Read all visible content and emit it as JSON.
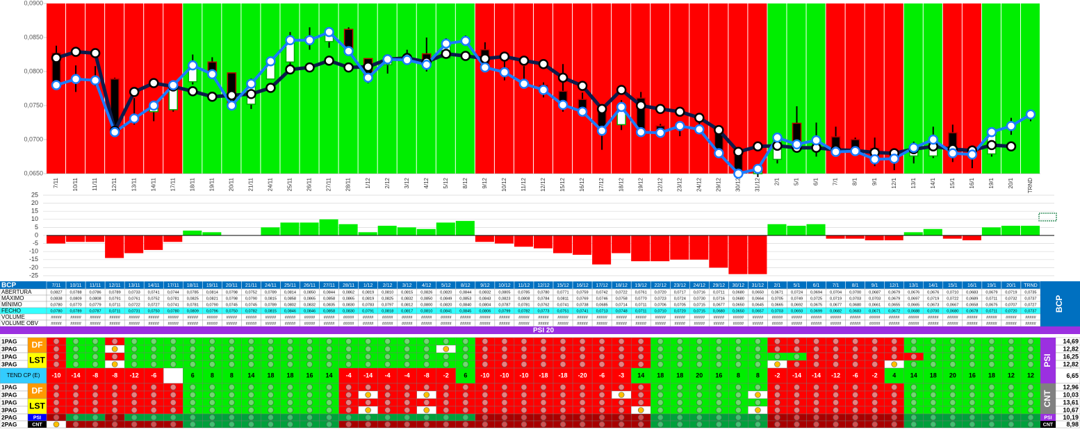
{
  "chart_data": [
    {
      "type": "candlestick",
      "categories": [
        "7/11",
        "10/11",
        "11/11",
        "12/11",
        "13/11",
        "14/11",
        "17/11",
        "18/11",
        "19/11",
        "20/11",
        "21/11",
        "24/11",
        "25/11",
        "26/11",
        "27/11",
        "28/11",
        "1/12",
        "2/12",
        "3/12",
        "4/12",
        "5/12",
        "8/12",
        "9/12",
        "10/12",
        "11/12",
        "12/12",
        "15/12",
        "16/12",
        "17/12",
        "18/12",
        "19/12",
        "22/12",
        "23/12",
        "24/12",
        "29/12",
        "30/12",
        "31/12",
        "2/1",
        "5/1",
        "6/1",
        "7/1",
        "8/1",
        "9/1",
        "12/1",
        "13/1",
        "14/1",
        "15/1",
        "16/1",
        "19/1",
        "20/1",
        "TRND"
      ],
      "open": [
        0.0827,
        0.0788,
        0.0786,
        0.0789,
        0.0733,
        0.0741,
        0.0744,
        0.0785,
        0.0814,
        0.0798,
        0.0752,
        0.0789,
        0.0814,
        0.085,
        0.0844,
        0.0862,
        0.0819,
        0.081,
        0.0815,
        0.0826,
        0.082,
        0.0844,
        0.0832,
        0.0805,
        0.0785,
        0.078,
        0.0771,
        0.0759,
        0.0742,
        0.0722,
        0.0761,
        0.072,
        0.0717,
        0.0716,
        0.0711,
        0.068,
        0.065,
        0.0671,
        0.0724,
        0.0694,
        0.0704,
        0.07,
        0.0687,
        0.0679,
        0.0676,
        0.0676,
        0.071,
        0.0683,
        0.0679,
        0.0719,
        0.0735
      ],
      "high": [
        0.0838,
        0.0809,
        0.0808,
        0.0791,
        0.0761,
        0.0752,
        0.0781,
        0.0825,
        0.0821,
        0.0798,
        0.079,
        0.0815,
        0.0858,
        0.0865,
        0.0858,
        0.0865,
        0.0819,
        0.0825,
        0.0832,
        0.085,
        0.0849,
        0.0853,
        0.0843,
        0.0823,
        0.0808,
        0.0784,
        0.0811,
        0.0769,
        0.0746,
        0.0758,
        0.077,
        0.0723,
        0.0724,
        0.073,
        0.0716,
        0.068,
        0.0664,
        0.0705,
        0.0749,
        0.0725,
        0.0719,
        0.0703,
        0.0703,
        0.0679,
        0.0697,
        0.0719,
        0.0722,
        0.0689,
        0.0711,
        0.0732,
        0.0737
      ],
      "low": [
        0.078,
        0.077,
        0.0779,
        0.0711,
        0.0722,
        0.0727,
        0.0741,
        0.0781,
        0.079,
        0.0745,
        0.0745,
        0.0789,
        0.0802,
        0.0832,
        0.0835,
        0.083,
        0.0783,
        0.0797,
        0.0812,
        0.08,
        0.082,
        0.084,
        0.0804,
        0.0787,
        0.0781,
        0.0762,
        0.0741,
        0.0738,
        0.0685,
        0.0714,
        0.0711,
        0.0706,
        0.0705,
        0.0715,
        0.0677,
        0.065,
        0.0645,
        0.0665,
        0.0692,
        0.0675,
        0.0677,
        0.068,
        0.0661,
        0.0655,
        0.0665,
        0.0673,
        0.0667,
        0.0658,
        0.0675,
        0.0707,
        0.0727
      ],
      "close": [
        0.078,
        0.0789,
        0.0787,
        0.0711,
        0.0731,
        0.075,
        0.078,
        0.0809,
        0.0796,
        0.075,
        0.0782,
        0.0815,
        0.0846,
        0.0846,
        0.0858,
        0.083,
        0.0791,
        0.0818,
        0.0817,
        0.081,
        0.0841,
        0.0845,
        0.0806,
        0.0799,
        0.0782,
        0.0773,
        0.0751,
        0.0741,
        0.0713,
        0.0748,
        0.0711,
        0.071,
        0.072,
        0.0715,
        0.068,
        0.065,
        0.0657,
        0.0703,
        0.0693,
        0.0699,
        0.0682,
        0.0683,
        0.0671,
        0.0672,
        0.0688,
        0.07,
        0.068,
        0.0678,
        0.0711,
        0.072,
        0.0737
      ],
      "close_color": "#1a7cff",
      "average": {
        "color": "#0d1b4b",
        "values": [
          0.082,
          0.0829,
          0.0827,
          0.0713,
          0.077,
          0.0783,
          0.0778,
          0.0771,
          0.0763,
          0.0765,
          0.0767,
          0.0776,
          0.0803,
          0.0806,
          0.0816,
          0.0806,
          0.0807,
          0.0818,
          0.082,
          0.0814,
          0.0826,
          0.0823,
          0.0819,
          0.0822,
          0.0816,
          0.0811,
          0.0791,
          0.0779,
          0.0745,
          0.0773,
          0.075,
          0.0745,
          0.0741,
          0.0732,
          0.0714,
          0.0682,
          0.069,
          0.0691,
          0.0688,
          0.0688,
          0.0685,
          0.0684,
          0.0681,
          0.068,
          0.0686,
          0.069,
          0.0686,
          0.0684,
          0.0692,
          0.069,
          null
        ]
      },
      "candle_colors": {
        "up_fill": "#ffffff",
        "up_stroke": "#00b000",
        "down_fill": "#000000",
        "down_stroke": "#c00000"
      },
      "band_pattern": "rrrrrrrgggggggggggggggrrrrrrrrrrrrrrrgggrrrrggrrggg",
      "band_colors": {
        "r": "#ff0000",
        "g": "#00ee00"
      },
      "ylim": [
        0.065,
        0.09
      ],
      "yticks": [
        {
          "value": 0.065,
          "label": "0,0650"
        },
        {
          "value": 0.07,
          "label": "0,0700"
        },
        {
          "value": 0.075,
          "label": "0,0750"
        },
        {
          "value": 0.08,
          "label": "0,0800"
        },
        {
          "value": 0.085,
          "label": "0,0850"
        },
        {
          "value": 0.09,
          "label": "0,0900"
        }
      ]
    },
    {
      "type": "bar",
      "values": [
        -5,
        -4,
        -4,
        -14,
        -11,
        -9,
        -4,
        3,
        2,
        0,
        0,
        5,
        8,
        8,
        10,
        7,
        2,
        6,
        5,
        4,
        8,
        9,
        -4,
        -5,
        -7,
        -8,
        -11,
        -12,
        -18,
        -11,
        -16,
        -16,
        -15,
        -15,
        -20,
        -24,
        -24,
        7,
        6,
        7,
        -2,
        -2,
        -3,
        -3,
        2,
        4,
        -2,
        -3,
        5,
        6,
        6
      ],
      "positive_color": "#00ee00",
      "negative_color": "#ff0000",
      "ylim": [
        -25,
        25
      ],
      "yticks": [
        25,
        20,
        15,
        10,
        5,
        0,
        -5,
        -10,
        -15,
        -20,
        -25
      ],
      "grid": true
    }
  ],
  "table": {
    "title": "BCP",
    "side": "BCP",
    "rows": [
      {
        "label": "ABERTURA",
        "cells": [
          "0,0827",
          "0,0788",
          "0,0786",
          "0,0789",
          "0,0733",
          "0,0741",
          "0,0744",
          "0,0785",
          "0,0814",
          "0,0798",
          "0,0752",
          "0,0789",
          "0,0814",
          "0,0850",
          "0,0844",
          "0,0862",
          "0,0819",
          "0,0810",
          "0,0815",
          "0,0826",
          "0,0820",
          "0,0844",
          "0,0832",
          "0,0805",
          "0,0785",
          "0,0780",
          "0,0771",
          "0,0759",
          "0,0742",
          "0,0722",
          "0,0761",
          "0,0720",
          "0,0717",
          "0,0716",
          "0,0711",
          "0,0680",
          "0,0650",
          "0,0671",
          "0,0724",
          "0,0694",
          "0,0704",
          "0,0700",
          "0,0687",
          "0,0679",
          "0,0676",
          "0,0676",
          "0,0710",
          "0,0683",
          "0,0679",
          "0,0719",
          "0,0735"
        ]
      },
      {
        "label": "MÁXIMO",
        "cells": [
          "0,0838",
          "0,0809",
          "0,0808",
          "0,0791",
          "0,0761",
          "0,0752",
          "0,0781",
          "0,0825",
          "0,0821",
          "0,0798",
          "0,0790",
          "0,0815",
          "0,0858",
          "0,0865",
          "0,0858",
          "0,0865",
          "0,0819",
          "0,0825",
          "0,0832",
          "0,0850",
          "0,0849",
          "0,0853",
          "0,0843",
          "0,0823",
          "0,0808",
          "0,0784",
          "0,0811",
          "0,0769",
          "0,0746",
          "0,0758",
          "0,0770",
          "0,0723",
          "0,0724",
          "0,0730",
          "0,0716",
          "0,0680",
          "0,0664",
          "0,0705",
          "0,0749",
          "0,0725",
          "0,0719",
          "0,0703",
          "0,0703",
          "0,0679",
          "0,0697",
          "0,0719",
          "0,0722",
          "0,0689",
          "0,0711",
          "0,0732",
          "0,0737"
        ]
      },
      {
        "label": "MÍNIMO",
        "cells": [
          "0,0780",
          "0,0770",
          "0,0779",
          "0,0711",
          "0,0722",
          "0,0727",
          "0,0741",
          "0,0781",
          "0,0790",
          "0,0745",
          "0,0745",
          "0,0789",
          "0,0802",
          "0,0832",
          "0,0835",
          "0,0830",
          "0,0783",
          "0,0797",
          "0,0812",
          "0,0800",
          "0,0820",
          "0,0840",
          "0,0804",
          "0,0787",
          "0,0781",
          "0,0762",
          "0,0741",
          "0,0738",
          "0,0685",
          "0,0714",
          "0,0711",
          "0,0706",
          "0,0705",
          "0,0715",
          "0,0677",
          "0,0650",
          "0,0645",
          "0,0665",
          "0,0692",
          "0,0675",
          "0,0677",
          "0,0680",
          "0,0661",
          "0,0655",
          "0,0665",
          "0,0673",
          "0,0667",
          "0,0658",
          "0,0675",
          "0,0707",
          "0,0727"
        ]
      },
      {
        "label": "FECHO",
        "color": "#33ffff",
        "cells": [
          "0,0780",
          "0,0789",
          "0,0787",
          "0,0711",
          "0,0731",
          "0,0750",
          "0,0780",
          "0,0809",
          "0,0796",
          "0,0750",
          "0,0782",
          "0,0815",
          "0,0846",
          "0,0846",
          "0,0858",
          "0,0830",
          "0,0791",
          "0,0818",
          "0,0817",
          "0,0810",
          "0,0841",
          "0,0845",
          "0,0806",
          "0,0799",
          "0,0782",
          "0,0773",
          "0,0751",
          "0,0741",
          "0,0713",
          "0,0748",
          "0,0711",
          "0,0710",
          "0,0720",
          "0,0715",
          "0,0680",
          "0,0650",
          "0,0657",
          "0,0703",
          "0,0693",
          "0,0699",
          "0,0682",
          "0,0683",
          "0,0671",
          "0,0672",
          "0,0688",
          "0,0700",
          "0,0680",
          "0,0678",
          "0,0711",
          "0,0720",
          "0,0737"
        ]
      },
      {
        "label": "VOLUME",
        "cells": [
          "#####",
          "#####",
          "#####",
          "#####",
          "#####",
          "#####",
          "#####",
          "#####",
          "#####",
          "#####",
          "#####",
          "#####",
          "#####",
          "#####",
          "#####",
          "#####",
          "#####",
          "#####",
          "#####",
          "#####",
          "#####",
          "#####",
          "#####",
          "#####",
          "#####",
          "#####",
          "#####",
          "#####",
          "#####",
          "#####",
          "#####",
          "#####",
          "#####",
          "#####",
          "#####",
          "#####",
          "#####",
          "#####",
          "#####",
          "#####",
          "#####",
          "#####",
          "#####",
          "#####",
          "#####",
          "#####",
          "#####",
          "#####",
          "#####",
          "#####",
          "#####"
        ]
      },
      {
        "label": "VOLUME OBV",
        "cells": [
          "#####",
          "#####",
          "#####",
          "#####",
          "#####",
          "#####",
          "#####",
          "#####",
          "#####",
          "#####",
          "#####",
          "#####",
          "#####",
          "#####",
          "#####",
          "#####",
          "#####",
          "#####",
          "#####",
          "#####",
          "#####",
          "#####",
          "#####",
          "#####",
          "#####",
          "#####",
          "#####",
          "#####",
          "#####",
          "#####",
          "#####",
          "#####",
          "#####",
          "#####",
          "#####",
          "#####",
          "#####",
          "#####",
          "#####",
          "#####",
          "#####",
          "#####",
          "#####",
          "#####",
          "#####",
          "#####",
          "#####",
          "#####",
          "#####",
          "#####",
          "#####"
        ]
      }
    ]
  },
  "psi20": "PSI 20",
  "signals": {
    "cell_colors": {
      "r": "#ff0000",
      "g": "#00ee00",
      "w": "#ffffff",
      "R": "#a80000",
      "G": "#00a03c"
    },
    "dot_colors": {
      "r": "#e88080",
      "g": "#70d870",
      "w": "#ffc000",
      "R": "#d05050",
      "G": "#40c070"
    },
    "sections": [
      {
        "label": "PSI",
        "color": "#9b30e0",
        "groups": [
          {
            "tag": "DF",
            "tag_color": "#ff9900",
            "tag_text": "#ffffff",
            "rows": [
              {
                "label": "1PAG",
                "pattern": "rggrggggggggggggggggggrrrrrrrrrggggggrrrrrrrggggggg",
                "total": "14,69"
              },
              {
                "label": "3PAG",
                "pattern": "rggwggggggggggggggggwgrrrrrrrrrggggggrrrrrrrggggggg",
                "total": "12,82"
              }
            ]
          },
          {
            "tag": "LST",
            "tag_color": "#ffff00",
            "tag_text": "#000000",
            "rows": [
              {
                "label": "1PAG",
                "pattern": "rggrggggggggggggggggggrrrrrrrrrggggggggrrrrrrggggggg",
                "total": "16,25"
              },
              {
                "label": "3PAG",
                "pattern": "rggwggggggggggggggggggrrrrrrrrrggggggwrrrrrwggggggg",
                "total": "12,82"
              }
            ]
          },
          {
            "rows": [
              {
                "label": "TEND CP (E)",
                "values": [
                  -10,
                  -14,
                  -8,
                  -8,
                  -12,
                  -6,
                  null,
                  6,
                  8,
                  8,
                  14,
                  18,
                  18,
                  16,
                  14,
                  -4,
                  -14,
                  -4,
                  -4,
                  -8,
                  -2,
                  6,
                  -10,
                  -10,
                  -10,
                  -18,
                  -18,
                  -20,
                  -6,
                  -3,
                  14,
                  18,
                  18,
                  20,
                  16,
                  8,
                  8,
                  -2,
                  -14,
                  -14,
                  -12,
                  -6,
                  -2,
                  4,
                  14,
                  18,
                  20,
                  16,
                  18,
                  12,
                  12
                ],
                "total": "6,65"
              }
            ]
          }
        ]
      },
      {
        "label": "CNT",
        "color": "#808080",
        "groups": [
          {
            "tag": "DF",
            "tag_color": "#ff9900",
            "tag_text": "#ffffff",
            "rows": [
              {
                "label": "1PAG",
                "pattern": "rrrrrrrggggggggrrrrrrrrrrrrrrrrggggggrrrrrrrggggggg",
                "total": "12,96"
              },
              {
                "label": "3PAG",
                "pattern": "rrrrrrrggggggggrwrrwrrrrrrrrrwrgggggwrrrrrrrggggggg",
                "total": "10,03"
              }
            ]
          },
          {
            "tag": "LST",
            "tag_color": "#ffff00",
            "tag_text": "#000000",
            "rows": [
              {
                "label": "1PAG",
                "pattern": "rrrrrrrggggggggrrrrrrrrrrrrrrrrggggggrrrrrrrggggggg",
                "total": "13,61"
              },
              {
                "label": "3PAG",
                "pattern": "rrrrrrrggggggggrwrrwrrrrrrrrrrwgggggwrrrrrrrggggggg",
                "total": "10,67"
              }
            ]
          }
        ]
      },
      {
        "groups": [
          {
            "tag": "PSI",
            "tag_color": "#0000ff",
            "tag_text": "#ffffff",
            "side": "PSI",
            "side_color": "#9b30e0",
            "rows": [
              {
                "label": "2PAG",
                "pattern": "RGGRGGGGGGGGGGGGGGGGGGRRRRRRRRRGGGGGGRRRRRRRGGGGGGG",
                "total": "10,19"
              }
            ]
          },
          {
            "tag": "CNT",
            "tag_color": "#000000",
            "tag_text": "#ffffff",
            "side": "CNT",
            "side_color": "#000000",
            "rows": [
              {
                "label": "2PAG",
                "pattern": "wRRRRRRGGGGGGGGRRRRRRRRRRRRRRRRGGGGGGRRRRRRRGGGGGGG",
                "total": "8,98"
              }
            ]
          }
        ]
      }
    ]
  }
}
